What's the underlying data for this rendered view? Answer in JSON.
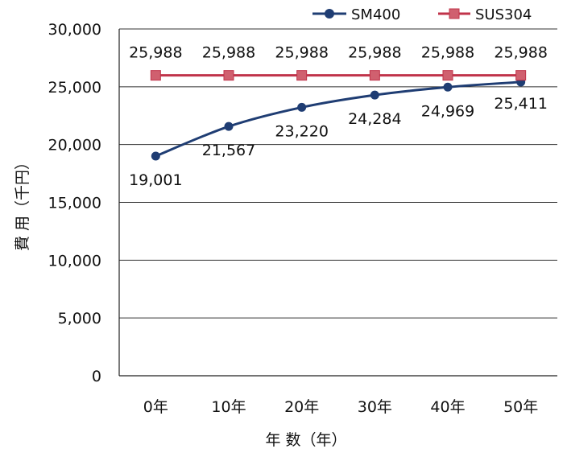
{
  "chart_data": {
    "type": "line",
    "categories": [
      "0年",
      "10年",
      "20年",
      "30年",
      "40年",
      "50年"
    ],
    "series": [
      {
        "name": "SM400",
        "values": [
          19001,
          21567,
          23220,
          24284,
          24969,
          25411
        ],
        "labels": [
          "19,001",
          "21,567",
          "23,220",
          "24,284",
          "24,969",
          "25,411"
        ],
        "color": "#1f3d73",
        "marker": "circle"
      },
      {
        "name": "SUS304",
        "values": [
          25988,
          25988,
          25988,
          25988,
          25988,
          25988
        ],
        "labels": [
          "25,988",
          "25,988",
          "25,988",
          "25,988",
          "25,988",
          "25,988"
        ],
        "color": "#c0334a",
        "marker": "square"
      }
    ],
    "xlabel": "年 数（年）",
    "ylabel": "費 用（千円）",
    "ylim": [
      0,
      30000
    ],
    "yticks": [
      0,
      5000,
      10000,
      15000,
      20000,
      25000,
      30000
    ],
    "ytick_labels": [
      "0",
      "5,000",
      "10,000",
      "15,000",
      "20,000",
      "25,000",
      "30,000"
    ],
    "grid": true,
    "legend": "top-right"
  }
}
